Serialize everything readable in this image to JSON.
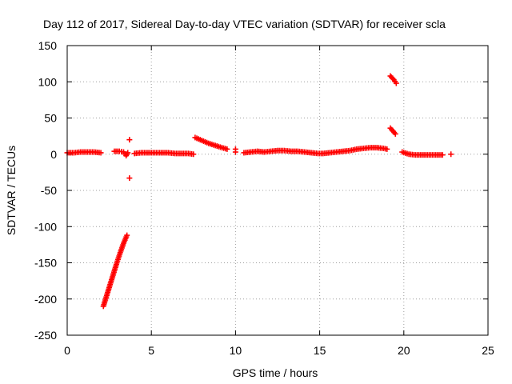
{
  "chart_data": {
    "type": "scatter",
    "title": "Day 112 of 2017, Sidereal Day-to-day VTEC variation (SDTVAR) for receiver scla",
    "xlabel": "GPS time / hours",
    "ylabel": "SDTVAR / TECUs",
    "xlim": [
      0,
      25
    ],
    "ylim": [
      -250,
      150
    ],
    "xticks": [
      "0",
      "5",
      "10",
      "15",
      "20",
      "25"
    ],
    "yticks": [
      "150",
      "100",
      "50",
      "0",
      "-50",
      "-100",
      "-150",
      "-200",
      "-250"
    ],
    "grid": true,
    "marker": "+",
    "series": [
      {
        "name": "SDTVAR",
        "color": "#ff0000",
        "points": [
          [
            0.0,
            2
          ],
          [
            0.4,
            2
          ],
          [
            0.8,
            3
          ],
          [
            1.2,
            3
          ],
          [
            1.6,
            3
          ],
          [
            2.0,
            2
          ],
          [
            2.15,
            -210
          ],
          [
            2.35,
            -195
          ],
          [
            2.55,
            -180
          ],
          [
            2.75,
            -165
          ],
          [
            2.95,
            -150
          ],
          [
            3.15,
            -136
          ],
          [
            3.35,
            -123
          ],
          [
            3.55,
            -112
          ],
          [
            2.8,
            4
          ],
          [
            3.1,
            4
          ],
          [
            3.35,
            3
          ],
          [
            3.5,
            -2
          ],
          [
            3.6,
            2
          ],
          [
            3.7,
            20
          ],
          [
            3.7,
            -33
          ],
          [
            4.0,
            1
          ],
          [
            4.4,
            2
          ],
          [
            4.8,
            2
          ],
          [
            5.2,
            2
          ],
          [
            5.6,
            2
          ],
          [
            6.0,
            2
          ],
          [
            6.4,
            1
          ],
          [
            6.8,
            1
          ],
          [
            7.2,
            1
          ],
          [
            7.5,
            0
          ],
          [
            7.6,
            23
          ],
          [
            8.0,
            19
          ],
          [
            8.4,
            15
          ],
          [
            8.8,
            12
          ],
          [
            9.2,
            9
          ],
          [
            9.5,
            7
          ],
          [
            10.0,
            3
          ],
          [
            10.0,
            7
          ],
          [
            10.5,
            2
          ],
          [
            10.9,
            3
          ],
          [
            11.3,
            4
          ],
          [
            11.7,
            3
          ],
          [
            12.1,
            4
          ],
          [
            12.5,
            5
          ],
          [
            12.9,
            5
          ],
          [
            13.3,
            4
          ],
          [
            13.7,
            4
          ],
          [
            14.1,
            3
          ],
          [
            14.5,
            2
          ],
          [
            14.9,
            1
          ],
          [
            15.2,
            1
          ],
          [
            15.6,
            2
          ],
          [
            16.0,
            3
          ],
          [
            16.4,
            4
          ],
          [
            16.8,
            5
          ],
          [
            17.2,
            7
          ],
          [
            17.6,
            8
          ],
          [
            18.0,
            9
          ],
          [
            18.4,
            9
          ],
          [
            18.8,
            8
          ],
          [
            19.0,
            7
          ],
          [
            19.2,
            36
          ],
          [
            19.35,
            32
          ],
          [
            19.5,
            28
          ],
          [
            19.2,
            108
          ],
          [
            19.4,
            103
          ],
          [
            19.55,
            98
          ],
          [
            19.9,
            3
          ],
          [
            20.3,
            0
          ],
          [
            20.7,
            -1
          ],
          [
            21.1,
            -1
          ],
          [
            21.5,
            -1
          ],
          [
            21.9,
            -1
          ],
          [
            22.3,
            -1
          ],
          [
            22.8,
            0
          ]
        ]
      }
    ]
  }
}
